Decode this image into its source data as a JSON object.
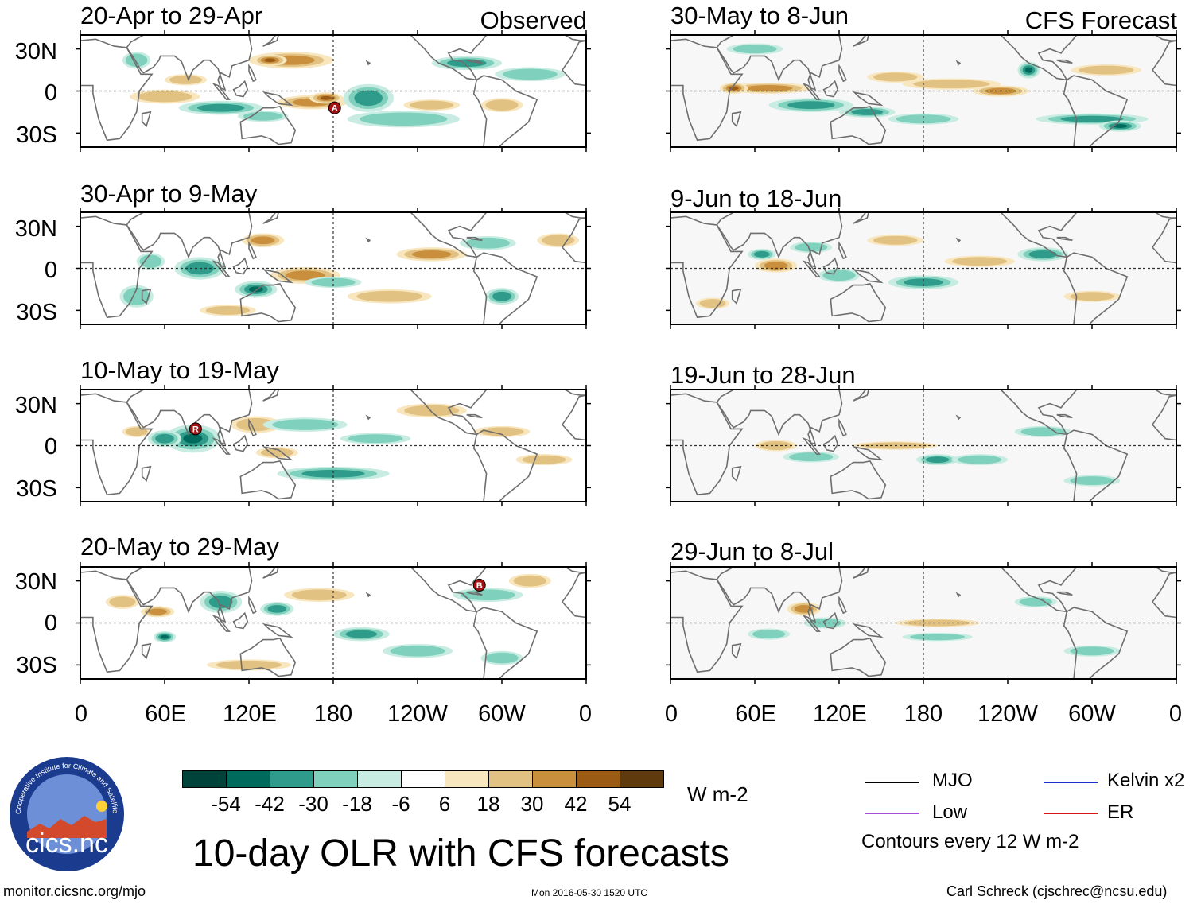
{
  "chart_data": {
    "type": "map-panels",
    "title": "10-day OLR with CFS forecasts",
    "observed_label": "Observed",
    "forecast_label": "CFS Forecast",
    "panels": [
      {
        "period": "20-Apr to 29-Apr",
        "column": "observed",
        "storms": [
          {
            "letter": "A",
            "lon": 181,
            "lat": -12
          }
        ]
      },
      {
        "period": "30-Apr to 9-May",
        "column": "observed",
        "storms": []
      },
      {
        "period": "10-May to 19-May",
        "column": "observed",
        "storms": [
          {
            "letter": "R",
            "lon": 82,
            "lat": 12
          }
        ]
      },
      {
        "period": "20-May to 29-May",
        "column": "observed",
        "storms": [
          {
            "letter": "B",
            "lon": 284,
            "lat": 27
          }
        ]
      },
      {
        "period": "30-May to 8-Jun",
        "column": "forecast",
        "storms": []
      },
      {
        "period": "9-Jun to 18-Jun",
        "column": "forecast",
        "storms": []
      },
      {
        "period": "19-Jun to 28-Jun",
        "column": "forecast",
        "storms": []
      },
      {
        "period": "29-Jun to 8-Jul",
        "column": "forecast",
        "storms": []
      }
    ],
    "lat_ticks": [
      "30N",
      "0",
      "30S"
    ],
    "lon_ticks": [
      "0",
      "60E",
      "120E",
      "180",
      "120W",
      "60W",
      "0"
    ],
    "colorbar": {
      "colors": [
        "#00433a",
        "#006b5c",
        "#2f9b8a",
        "#7fd0bc",
        "#c8ece2",
        "#ffffff",
        "#f8e6bf",
        "#e2c282",
        "#c98f3d",
        "#9c5b14",
        "#5e3a0d"
      ],
      "ticks": [
        "-54",
        "-42",
        "-30",
        "-18",
        "-6",
        "6",
        "18",
        "30",
        "42",
        "54"
      ],
      "units": "W m-2"
    }
  },
  "legend": {
    "items": [
      {
        "label": "MJO",
        "color": "#000000"
      },
      {
        "label": "Kelvin x2",
        "color": "#1f2ecf"
      },
      {
        "label": "Low",
        "color": "#a24dd6"
      },
      {
        "label": "ER",
        "color": "#d01818"
      }
    ],
    "contour_note": "Contours every 12 W m-2"
  },
  "logo": {
    "text": "cics.nc",
    "ring_text": "Cooperative Institute for Climate and Satellites"
  },
  "footer": {
    "left": "monitor.cicsnc.org/mjo",
    "center": "Mon 2016-05-30 1520 UTC",
    "right": "Carl Schreck (cjschrec@ncsu.edu)"
  }
}
